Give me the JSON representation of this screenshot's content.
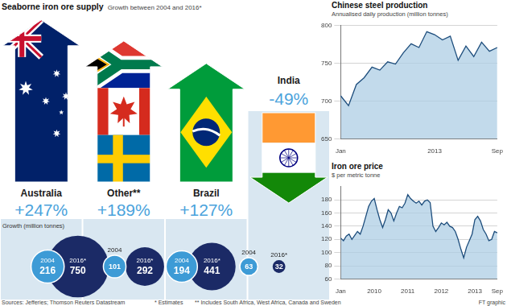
{
  "title": "Seaborne iron ore supply",
  "subtitle": "Growth between 2004 and 2016*",
  "chart_data": [
    {
      "type": "bubble",
      "title": "Growth (million tonnes)",
      "categories": [
        "Australia",
        "Other**",
        "Brazil",
        "India"
      ],
      "change": [
        {
          "value": 247,
          "label": "+247%"
        },
        {
          "value": 189,
          "label": "+189%"
        },
        {
          "value": 127,
          "label": "+127%"
        },
        {
          "value": -49,
          "label": "-49%"
        }
      ],
      "series": [
        {
          "name": "2004",
          "color": "#3d9bd6",
          "values": [
            216,
            101,
            194,
            63
          ]
        },
        {
          "name": "2016*",
          "color": "#1b2a66",
          "values": [
            750,
            292,
            441,
            32
          ]
        }
      ],
      "data_labels": true,
      "tick_labels": false
    },
    {
      "type": "area",
      "title": "Chinese steel production",
      "subtitle": "Annualised daily production (million tonnes)",
      "categories": [
        "Jan",
        null,
        null,
        null,
        null,
        null,
        null,
        null,
        null,
        null,
        null,
        null,
        "2013",
        null,
        null,
        null,
        null,
        null,
        null,
        null,
        "Sep"
      ],
      "values": [
        707,
        694,
        722,
        731,
        745,
        741,
        752,
        749,
        764,
        776,
        771,
        792,
        788,
        781,
        786,
        754,
        773,
        759,
        778,
        766,
        771
      ],
      "color": "#1d4d7c",
      "ylim": [
        650,
        800
      ],
      "yticks": [
        650,
        700,
        750,
        800
      ],
      "grid": true
    },
    {
      "type": "area",
      "title": "Iron ore price",
      "subtitle": "$ per metric tonne",
      "categories": [
        "Jan",
        null,
        null,
        null,
        null,
        null,
        null,
        null,
        null,
        null,
        null,
        null,
        "2010",
        null,
        null,
        null,
        null,
        null,
        null,
        null,
        null,
        null,
        null,
        null,
        "2011",
        null,
        null,
        null,
        null,
        null,
        null,
        null,
        null,
        null,
        null,
        null,
        "2012",
        null,
        null,
        null,
        null,
        null,
        null,
        null,
        null,
        null,
        null,
        null,
        "2013",
        null,
        null,
        null,
        null,
        null,
        null,
        null,
        "Sep"
      ],
      "values": [
        122,
        118,
        125,
        128,
        120,
        126,
        132,
        128,
        140,
        155,
        170,
        178,
        182,
        165,
        150,
        138,
        150,
        165,
        160,
        148,
        160,
        170,
        168,
        175,
        188,
        182,
        178,
        175,
        178,
        172,
        178,
        180,
        176,
        140,
        132,
        138,
        145,
        142,
        146,
        140,
        138,
        132,
        120,
        105,
        92,
        108,
        118,
        128,
        150,
        155,
        148,
        135,
        128,
        118,
        120,
        132,
        130
      ],
      "color": "#1d4d7c",
      "ylim": [
        60,
        200
      ],
      "yticks": [
        60,
        80,
        100,
        120,
        140,
        160,
        180
      ],
      "grid": true
    }
  ],
  "footnotes": [
    "* Estimates",
    "** Includes South Africa, West Africa, Canada and Sweden"
  ],
  "source": "Sources: Jefferies; Thomson Reuters Datastream",
  "credit": "FT graphic"
}
